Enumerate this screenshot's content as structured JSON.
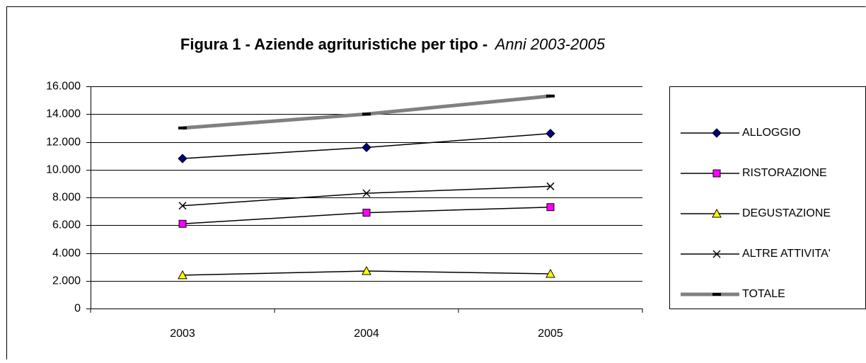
{
  "chart_data": {
    "type": "line",
    "title": "Figura 1 - Aziende agrituristiche per tipo -",
    "subtitle": "Anni  2003-2005",
    "categories": [
      "2003",
      "2004",
      "2005"
    ],
    "series": [
      {
        "name": "ALLOGGIO",
        "color": "#000000",
        "marker": "diamond",
        "marker_color": "#000080",
        "values": [
          10800,
          11600,
          12600
        ]
      },
      {
        "name": "RISTORAZIONE",
        "color": "#000000",
        "marker": "square",
        "marker_color": "#ff00ff",
        "values": [
          6100,
          6900,
          7300
        ]
      },
      {
        "name": "DEGUSTAZIONE",
        "color": "#000000",
        "marker": "triangle",
        "marker_color": "#ffff00",
        "values": [
          2400,
          2700,
          2500
        ]
      },
      {
        "name": "ALTRE ATTIVITA'",
        "color": "#000000",
        "marker": "x",
        "marker_color": "#000000",
        "values": [
          7400,
          8300,
          8800
        ]
      },
      {
        "name": "TOTALE",
        "color": "#808080",
        "marker": "dash",
        "marker_color": "#000000",
        "line_width": 5,
        "values": [
          13000,
          14000,
          15300
        ]
      }
    ],
    "ylim": [
      0,
      16000
    ],
    "yticks": [
      0,
      {
        "value": 2000,
        "label": "2.000"
      },
      {
        "value": 4000,
        "label": "4.000"
      },
      {
        "value": 6000,
        "label": "6.000"
      },
      {
        "value": 8000,
        "label": "8.000"
      },
      {
        "value": 10000,
        "label": "10.000"
      },
      {
        "value": 12000,
        "label": "12.000"
      },
      {
        "value": 14000,
        "label": "14.000"
      },
      {
        "value": 16000,
        "label": "16.000"
      }
    ],
    "grid": true
  }
}
